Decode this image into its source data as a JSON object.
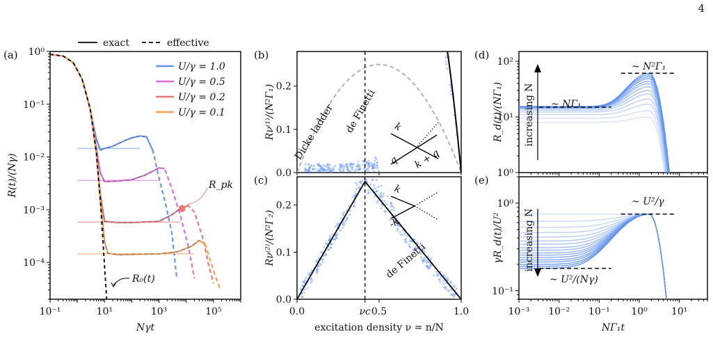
{
  "page_number": "4",
  "top_legend": {
    "exact": "exact",
    "effective": "effective"
  },
  "colors": {
    "blue": "#6495ED",
    "magenta": "#DA70D6",
    "red": "#E87878",
    "orange": "#F0A050",
    "gray": "#AAAAAA",
    "black": "#000000"
  },
  "chart_data": [
    {
      "id": "a",
      "panel_label": "(a)",
      "type": "line",
      "xscale": "log",
      "yscale": "log",
      "xlabel": "Nγt",
      "ylabel": "R(t)/(Nγ)",
      "xlim": [
        0.1,
        1000000
      ],
      "ylim": [
        2e-05,
        1
      ],
      "xticks": [
        "10⁻¹",
        "10¹",
        "10³",
        "10⁵"
      ],
      "yticks": [
        "10⁻⁴",
        "10⁻³",
        "10⁻²",
        "10⁻¹",
        "10⁰"
      ],
      "legend_position": "top-right",
      "annotations": {
        "rpk": "R_pk",
        "r0": "R₀(t)"
      },
      "series": [
        {
          "name": "U/γ = 1.0",
          "color": "#6495ED",
          "plateau": 0.0145,
          "points": [
            [
              0.1,
              0.88
            ],
            [
              0.3,
              0.82
            ],
            [
              0.7,
              0.62
            ],
            [
              1.5,
              0.3
            ],
            [
              3,
              0.08
            ],
            [
              5,
              0.022
            ],
            [
              7,
              0.0135
            ],
            [
              10,
              0.0145
            ],
            [
              20,
              0.016
            ],
            [
              50,
              0.02
            ],
            [
              100,
              0.023
            ],
            [
              200,
              0.025
            ],
            [
              350,
              0.024
            ],
            [
              600,
              0.013
            ],
            [
              1000,
              0.004
            ],
            [
              1800,
              0.0012
            ],
            [
              3000,
              0.00035
            ],
            [
              4500,
              5e-05
            ]
          ]
        },
        {
          "name": "U/γ = 0.5",
          "color": "#DA70D6",
          "plateau": 0.0036,
          "points": [
            [
              0.1,
              0.88
            ],
            [
              0.3,
              0.82
            ],
            [
              0.7,
              0.62
            ],
            [
              1.5,
              0.3
            ],
            [
              3,
              0.08
            ],
            [
              5,
              0.015
            ],
            [
              7,
              0.005
            ],
            [
              10,
              0.0034
            ],
            [
              30,
              0.0035
            ],
            [
              100,
              0.0037
            ],
            [
              300,
              0.0045
            ],
            [
              1000,
              0.0062
            ],
            [
              1600,
              0.006
            ],
            [
              3000,
              0.0025
            ],
            [
              6000,
              0.0008
            ],
            [
              12000,
              0.0002
            ],
            [
              20000,
              5e-05
            ]
          ]
        },
        {
          "name": "U/γ = 0.2",
          "color": "#E87878",
          "plateau": 0.00058,
          "points": [
            [
              0.1,
              0.88
            ],
            [
              0.3,
              0.82
            ],
            [
              0.7,
              0.62
            ],
            [
              1.5,
              0.3
            ],
            [
              3,
              0.08
            ],
            [
              5,
              0.012
            ],
            [
              7,
              0.002
            ],
            [
              10,
              0.0006
            ],
            [
              30,
              0.00057
            ],
            [
              100,
              0.00057
            ],
            [
              1000,
              0.0006
            ],
            [
              3000,
              0.0008
            ],
            [
              6000,
              0.00105
            ],
            [
              12000,
              0.0012
            ],
            [
              20000,
              0.0009
            ],
            [
              40000,
              0.0003
            ],
            [
              70000,
              8e-05
            ],
            [
              100000,
              4e-05
            ]
          ]
        },
        {
          "name": "U/γ = 0.1",
          "color": "#F0A050",
          "plateau": 0.000145,
          "points": [
            [
              0.1,
              0.88
            ],
            [
              0.3,
              0.82
            ],
            [
              0.7,
              0.62
            ],
            [
              1.5,
              0.3
            ],
            [
              3,
              0.08
            ],
            [
              5,
              0.012
            ],
            [
              7,
              0.0015
            ],
            [
              10,
              0.00025
            ],
            [
              13,
              0.00015
            ],
            [
              30,
              0.00014
            ],
            [
              100,
              0.000142
            ],
            [
              1000,
              0.000145
            ],
            [
              5000,
              0.00016
            ],
            [
              15000,
              0.0002
            ],
            [
              30000,
              0.00026
            ],
            [
              50000,
              0.00022
            ],
            [
              100000,
              7e-05
            ],
            [
              180000,
              3e-05
            ]
          ]
        }
      ],
      "exact_r0": [
        [
          0.1,
          0.88
        ],
        [
          0.3,
          0.82
        ],
        [
          0.7,
          0.62
        ],
        [
          1.5,
          0.3
        ],
        [
          3,
          0.08
        ],
        [
          5,
          0.012
        ],
        [
          7,
          0.0015
        ],
        [
          9,
          0.0002
        ],
        [
          11,
          4e-05
        ],
        [
          12,
          2e-05
        ]
      ],
      "rpk_point": [
        7000,
        0.00105
      ]
    },
    {
      "id": "b",
      "panel_label": "(b)",
      "type": "scatter",
      "ylabel": "Rν⁽¹⁾/(N²Γ₁)",
      "xlim": [
        0,
        1
      ],
      "ylim": [
        0,
        0.28
      ],
      "yticks": [
        "0.0",
        "0.1",
        "0.2"
      ],
      "annotations": {
        "dicke": "Dicke ladder",
        "definetti": "de Finetti",
        "k1": "k",
        "k2": "k + q",
        "q": "q"
      },
      "exact_curve": "4.16 ν²(1-ν) for ν > 0.5",
      "dicke_peak": 0.25
    },
    {
      "id": "c",
      "panel_label": "(c)",
      "type": "scatter",
      "ylabel": "Rν⁽²⁾/(N²Γ₂)",
      "xlabel": "excitation density ν = n/N",
      "xlim": [
        0,
        1
      ],
      "ylim": [
        0,
        0.26
      ],
      "xticks": [
        "0.0",
        "νc",
        "0.5",
        "1.0"
      ],
      "yticks": [
        "0.0",
        "0.1",
        "0.2"
      ],
      "nu_c": 0.414,
      "peak": 0.25,
      "annotations": {
        "definetti": "de Finetti",
        "k": "k",
        "mk": "-k"
      }
    },
    {
      "id": "d",
      "panel_label": "(d)",
      "type": "line",
      "xscale": "log",
      "yscale": "log",
      "ylabel": "R_d(t)/(NΓ₁)",
      "xlim": [
        0.001,
        50
      ],
      "ylim": [
        1,
        150
      ],
      "yticks": [
        "10⁰",
        "10¹",
        "10²"
      ],
      "annotations": {
        "low": "~ NΓ₁",
        "high": "~ N²Γ₁",
        "arrow": "increasing N"
      },
      "plateau_values": [
        8,
        9.5,
        11,
        12.3,
        13.2,
        14,
        14.5,
        14.8,
        15,
        15.1,
        15.2,
        15.3,
        15.4
      ],
      "peak_values": [
        10,
        13,
        17,
        21,
        26,
        30,
        35,
        40,
        44,
        49,
        53,
        57,
        61
      ]
    },
    {
      "id": "e",
      "panel_label": "(e)",
      "type": "line",
      "xscale": "log",
      "yscale": "log",
      "ylabel": "γR_d(t)/U²",
      "xlabel": "NΓ₁t",
      "xlim": [
        0.001,
        50
      ],
      "ylim": [
        0.08,
        2
      ],
      "xticks": [
        "10⁻³",
        "10⁻²",
        "10⁻¹",
        "10⁰",
        "10¹"
      ],
      "yticks": [
        "10⁻¹",
        "10⁰"
      ],
      "annotations": {
        "high": "~ U²/γ",
        "low": "~ U²/(Nγ)",
        "arrow": "increasing N"
      },
      "plateau_values": [
        0.75,
        0.62,
        0.53,
        0.46,
        0.41,
        0.37,
        0.34,
        0.31,
        0.29,
        0.27,
        0.255,
        0.24,
        0.225,
        0.213,
        0.2,
        0.19,
        0.18
      ],
      "peak_value": 0.75
    }
  ]
}
